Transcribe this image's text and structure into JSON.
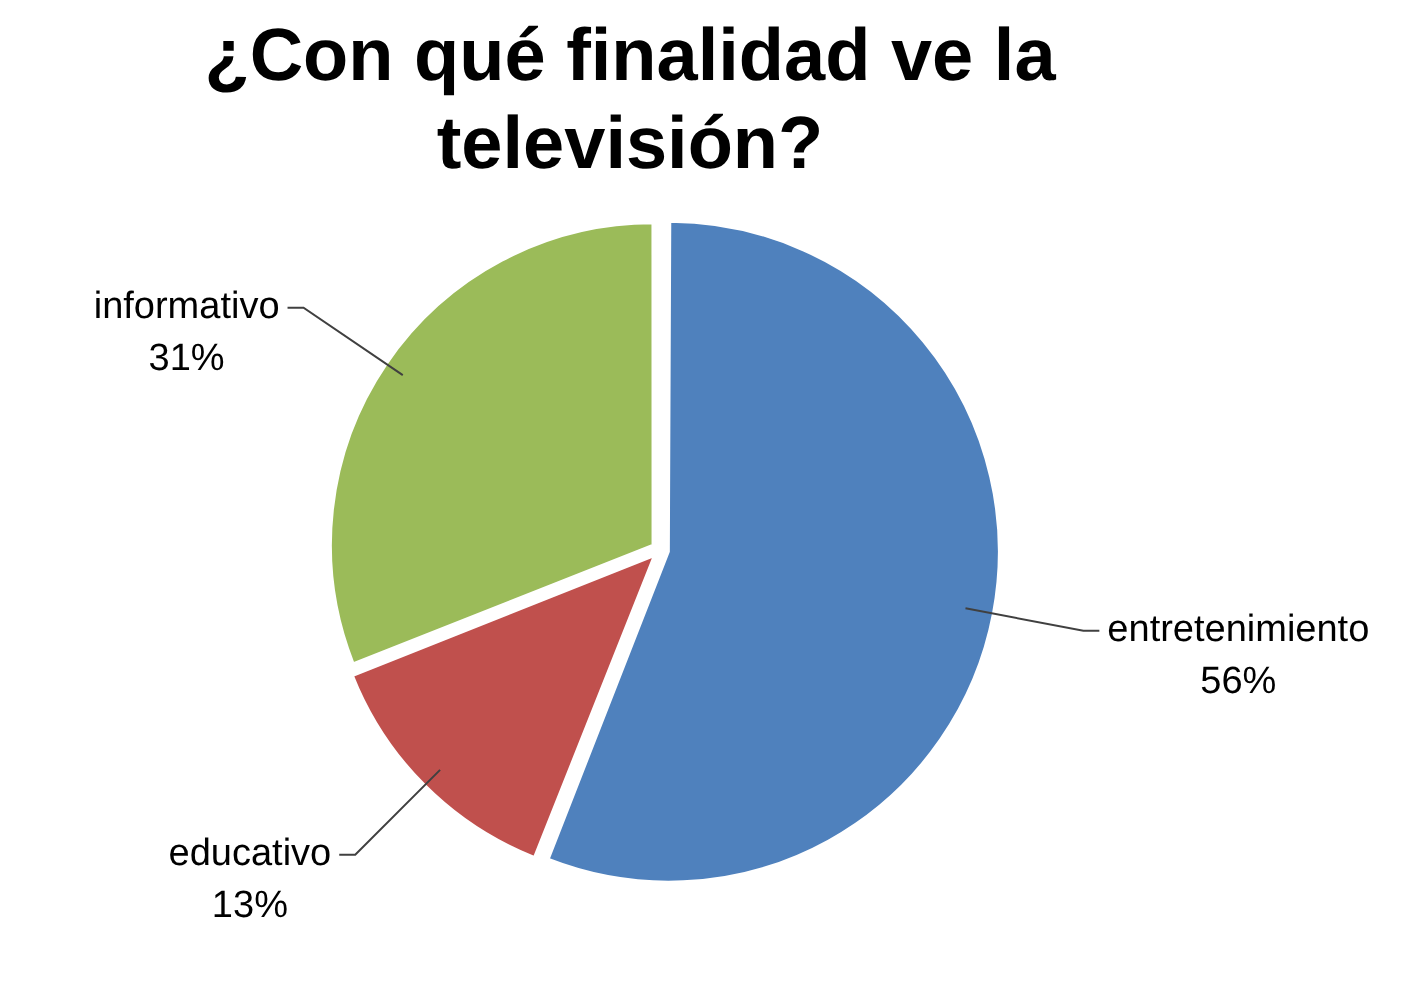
{
  "chart_data": {
    "type": "pie",
    "title": "¿Con qué finalidad ve la televisión?",
    "categories": [
      "entretenimiento",
      "educativo",
      "informativo"
    ],
    "values": [
      56,
      13,
      31
    ],
    "value_labels": [
      "56%",
      "13%",
      "31%"
    ],
    "colors": [
      "#4f81bd",
      "#c0504d",
      "#9bbb59"
    ],
    "legend": false
  }
}
